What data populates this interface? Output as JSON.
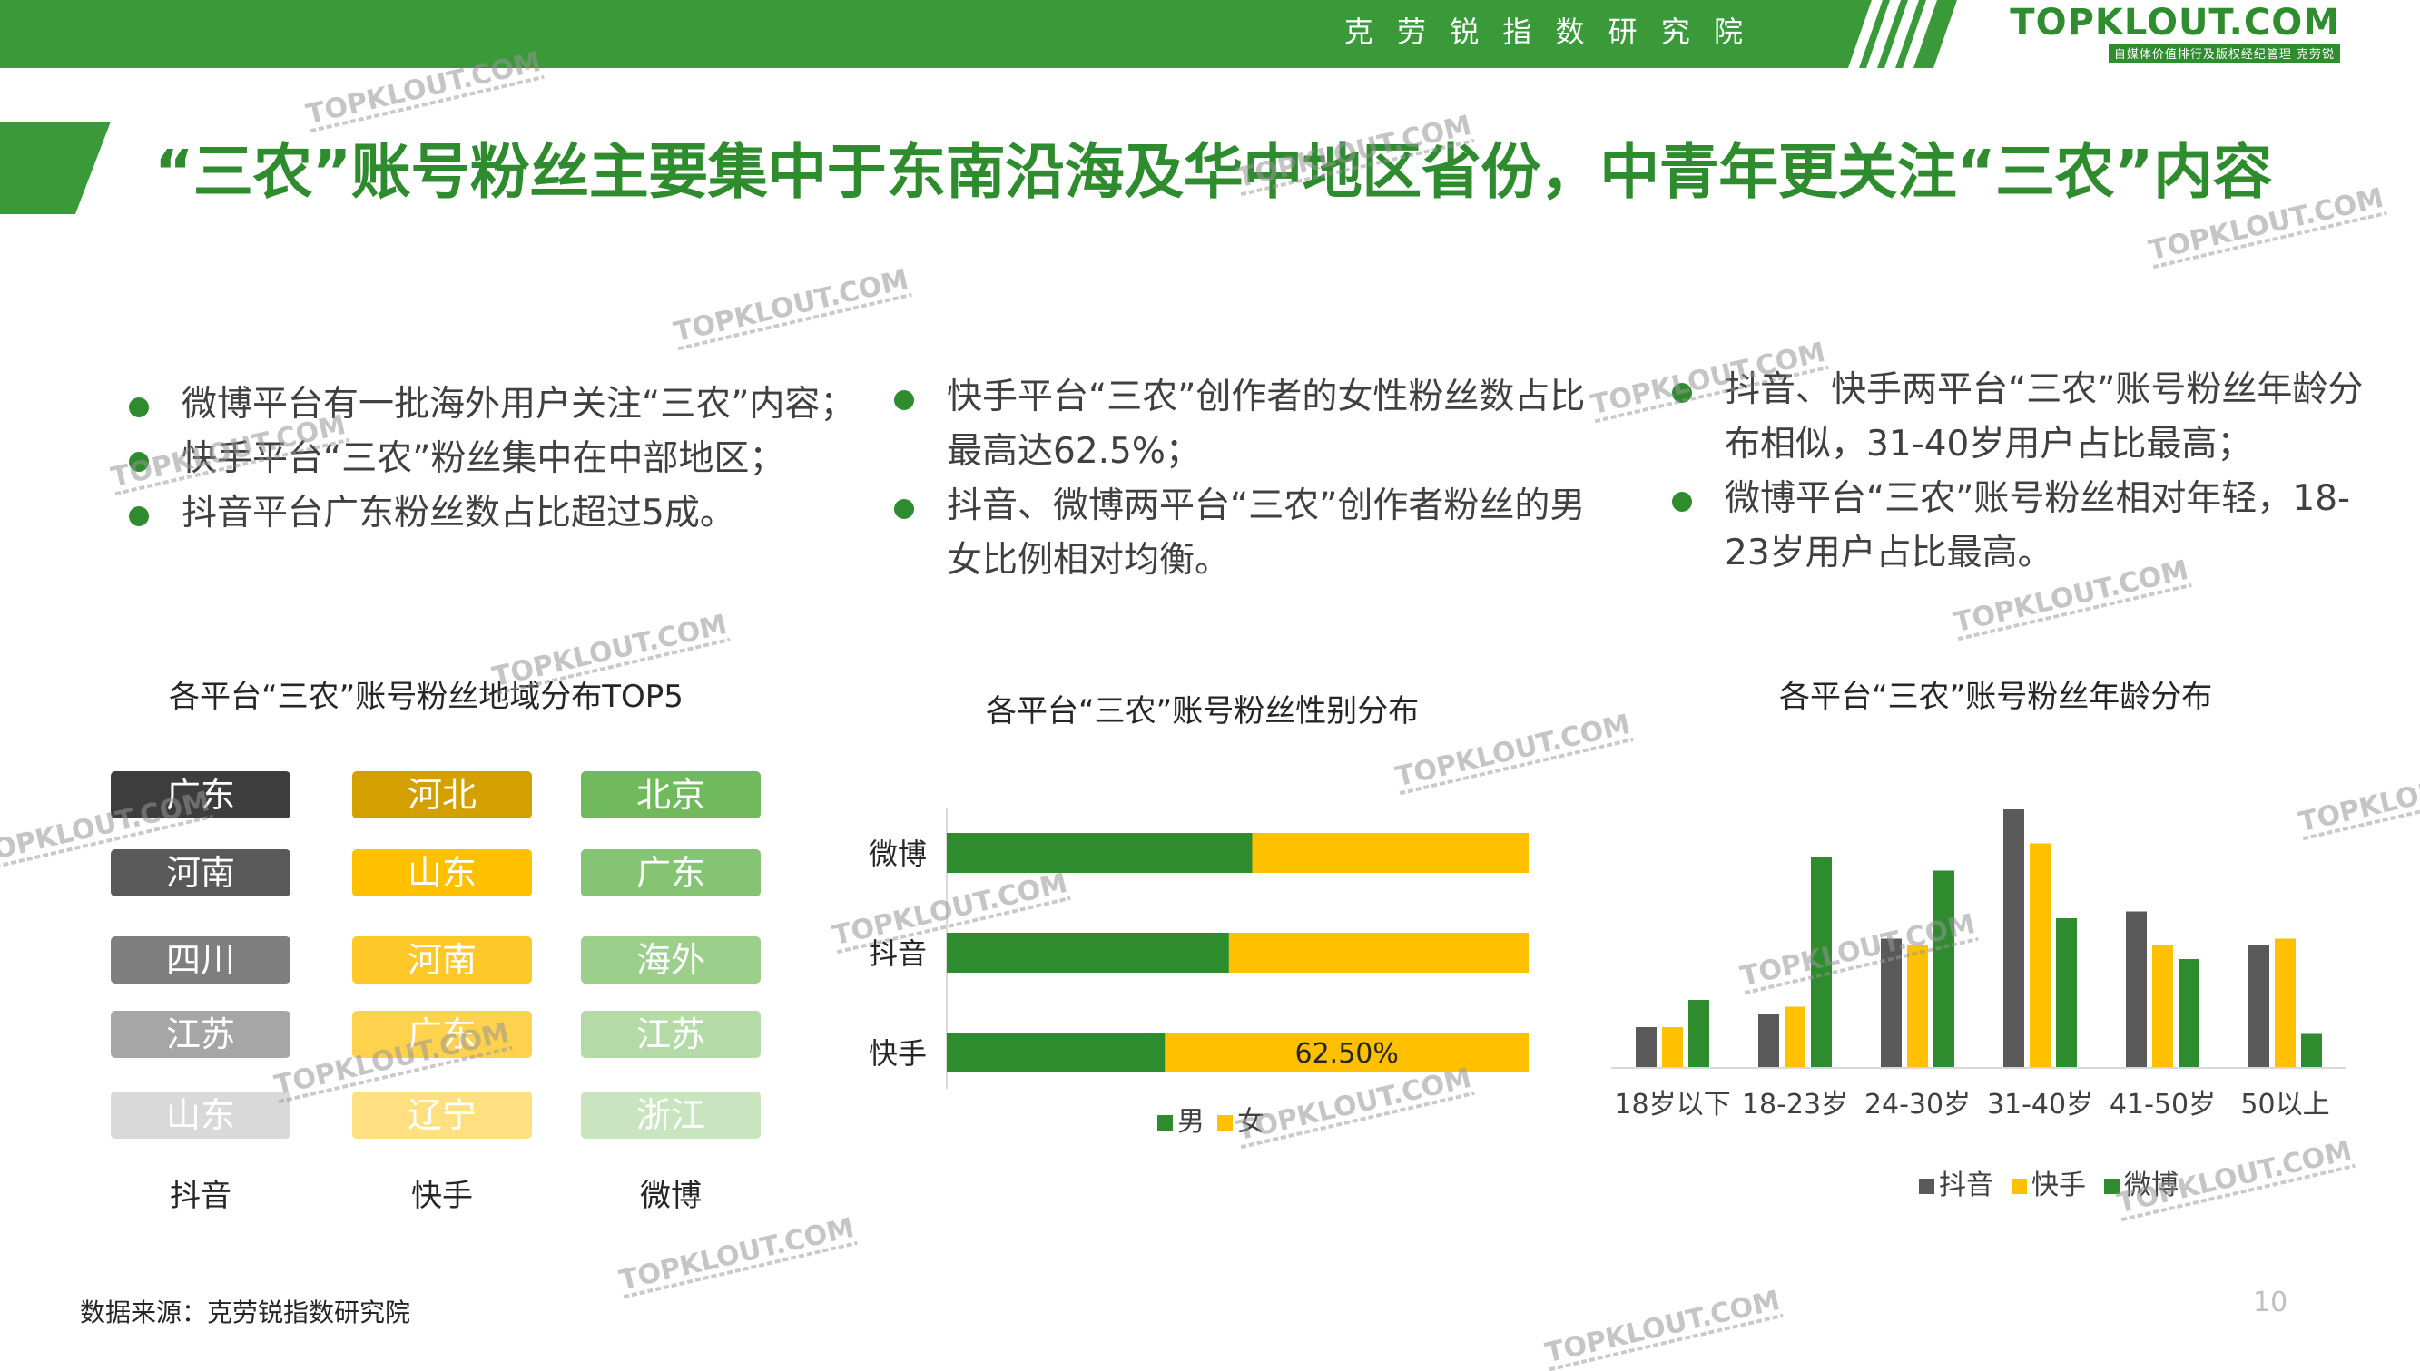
{
  "header": {
    "institute": "克 劳 锐 指 数 研 究 院",
    "brand_name": "TOPKLOUT.COM",
    "brand_tagline": "自媒体价值排行及版权经纪管理 克劳锐"
  },
  "title": "“三农”账号粉丝主要集中于东南沿海及华中地区省份，中青年更关注“三农”内容",
  "bullet_columns": [
    [
      "微博平台有一批海外用户关注“三农”内容；",
      "快手平台“三农”粉丝集中在中部地区；",
      "抖音平台广东粉丝数占比超过5成。"
    ],
    [
      "快手平台“三农”创作者的女性粉丝数占比最高达62.5%；",
      "抖音、微博两平台“三农”创作者粉丝的男女比例相对均衡。"
    ],
    [
      "抖音、快手两平台“三农”账号粉丝年龄分布相似，31-40岁用户占比最高；",
      "微博平台“三农”账号粉丝相对年轻，18-23岁用户占比最高。"
    ]
  ],
  "colors": {
    "green": "#2e8b2e",
    "douyin": "#595959",
    "kuaishou": "#ffc000",
    "weibo": "#2e8b2e",
    "male": "#2e8b2e",
    "female": "#ffc000"
  },
  "chart_data": [
    {
      "type": "table",
      "title": "各平台“三农”账号粉丝地域分布TOP5",
      "columns": [
        {
          "platform": "抖音",
          "regions": [
            "广东",
            "河南",
            "四川",
            "江苏",
            "山东"
          ],
          "colors": [
            "#3d3d3d",
            "#595959",
            "#7f7f7f",
            "#a6a6a6",
            "#d9d9d9"
          ]
        },
        {
          "platform": "快手",
          "regions": [
            "河北",
            "山东",
            "河南",
            "广东",
            "辽宁"
          ],
          "colors": [
            "#d4a000",
            "#ffc000",
            "#ffc829",
            "#ffd24d",
            "#ffe080"
          ]
        },
        {
          "platform": "微博",
          "regions": [
            "北京",
            "广东",
            "海外",
            "江苏",
            "浙江"
          ],
          "colors": [
            "#70b95c",
            "#85c472",
            "#9ccf8c",
            "#b4dba7",
            "#c9e5c0"
          ]
        }
      ]
    },
    {
      "type": "bar",
      "orientation": "horizontal",
      "stacked": true,
      "title": "各平台“三农”账号粉丝性别分布",
      "categories": [
        "微博",
        "抖音",
        "快手"
      ],
      "series": [
        {
          "name": "男",
          "values": [
            52.5,
            48.5,
            37.5
          ]
        },
        {
          "name": "女",
          "values": [
            47.5,
            51.5,
            62.5
          ]
        }
      ],
      "data_labels": [
        {
          "category": "快手",
          "series": "女",
          "text": "62.50%"
        }
      ],
      "xlim": [
        0,
        100
      ],
      "legend": "bottom"
    },
    {
      "type": "bar",
      "title": "各平台“三农”账号粉丝年龄分布",
      "categories": [
        "18岁以下",
        "18-23岁",
        "24-30岁",
        "31-40岁",
        "41-50岁",
        "50以上"
      ],
      "series": [
        {
          "name": "抖音",
          "values": [
            6,
            8,
            19,
            38,
            23,
            18
          ]
        },
        {
          "name": "快手",
          "values": [
            6,
            9,
            18,
            33,
            18,
            19
          ]
        },
        {
          "name": "微博",
          "values": [
            10,
            31,
            29,
            22,
            16,
            5
          ]
        }
      ],
      "ylim": [
        0,
        40
      ],
      "legend": "bottom"
    }
  ],
  "footer": {
    "source": "数据来源：克劳锐指数研究院",
    "page_number": "10"
  },
  "watermark": "TOPKLOUT.COM"
}
